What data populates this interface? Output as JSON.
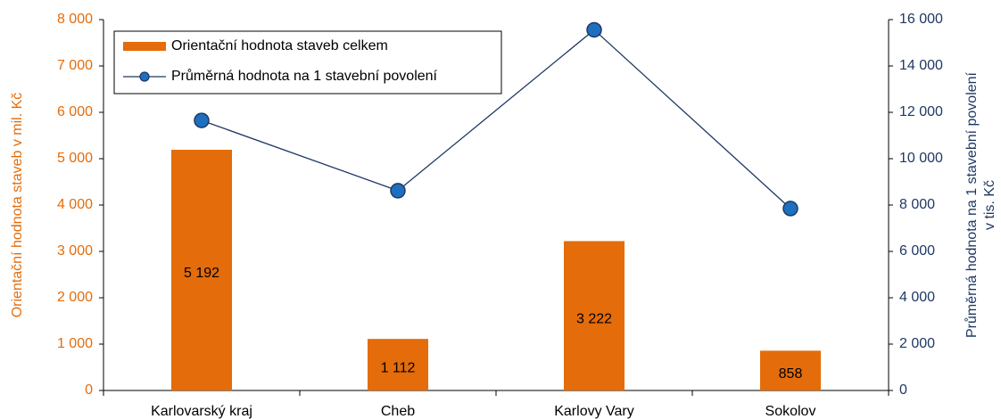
{
  "chart_data": {
    "type": "bar_line",
    "categories": [
      "Karlovarský kraj",
      "Cheb",
      "Karlovy Vary",
      "Sokolov"
    ],
    "series": [
      {
        "name": "Orientační hodnota staveb celkem",
        "type": "bar",
        "color": "#e46c0a",
        "values": [
          5192,
          1112,
          3222,
          858
        ],
        "value_labels": [
          "5 192",
          "1 112",
          "3 222",
          "858"
        ]
      },
      {
        "name": "Průměrná hodnota na 1 stavební povolení",
        "type": "line",
        "axis": "y2",
        "color": "#1f3864",
        "marker_color": "#1f6fbf",
        "values": [
          11650,
          8620,
          15560,
          7850
        ]
      }
    ],
    "ylabel": "Orientační hodnota staveb v mil. Kč",
    "y2label": [
      "Průměrná hodnota na 1 stavební povolení",
      "v tis. Kč"
    ],
    "ylim": [
      0,
      8000
    ],
    "yticks": [
      0,
      {
        "value": 1000,
        "label": "1 000"
      },
      {
        "value": 2000,
        "label": "2 000"
      },
      {
        "value": 3000,
        "label": "3 000"
      },
      {
        "value": 4000,
        "label": "4 000"
      },
      {
        "value": 5000,
        "label": "5 000"
      },
      {
        "value": 6000,
        "label": "6 000"
      },
      {
        "value": 7000,
        "label": "7 000"
      },
      {
        "value": 8000,
        "label": "8 000"
      }
    ],
    "y2lim": [
      0,
      16000
    ],
    "y2ticks": [
      0,
      {
        "value": 2000,
        "label": "2 000"
      },
      {
        "value": 4000,
        "label": "4 000"
      },
      {
        "value": 6000,
        "label": "6 000"
      },
      {
        "value": 8000,
        "label": "8 000"
      },
      {
        "value": 10000,
        "label": "10 000"
      },
      {
        "value": 12000,
        "label": "12 000"
      },
      {
        "value": 14000,
        "label": "14 000"
      },
      {
        "value": 16000,
        "label": "16 000"
      }
    ],
    "ycolor": "#e46c0a",
    "y2color": "#1f3864",
    "legend": "upper left"
  }
}
